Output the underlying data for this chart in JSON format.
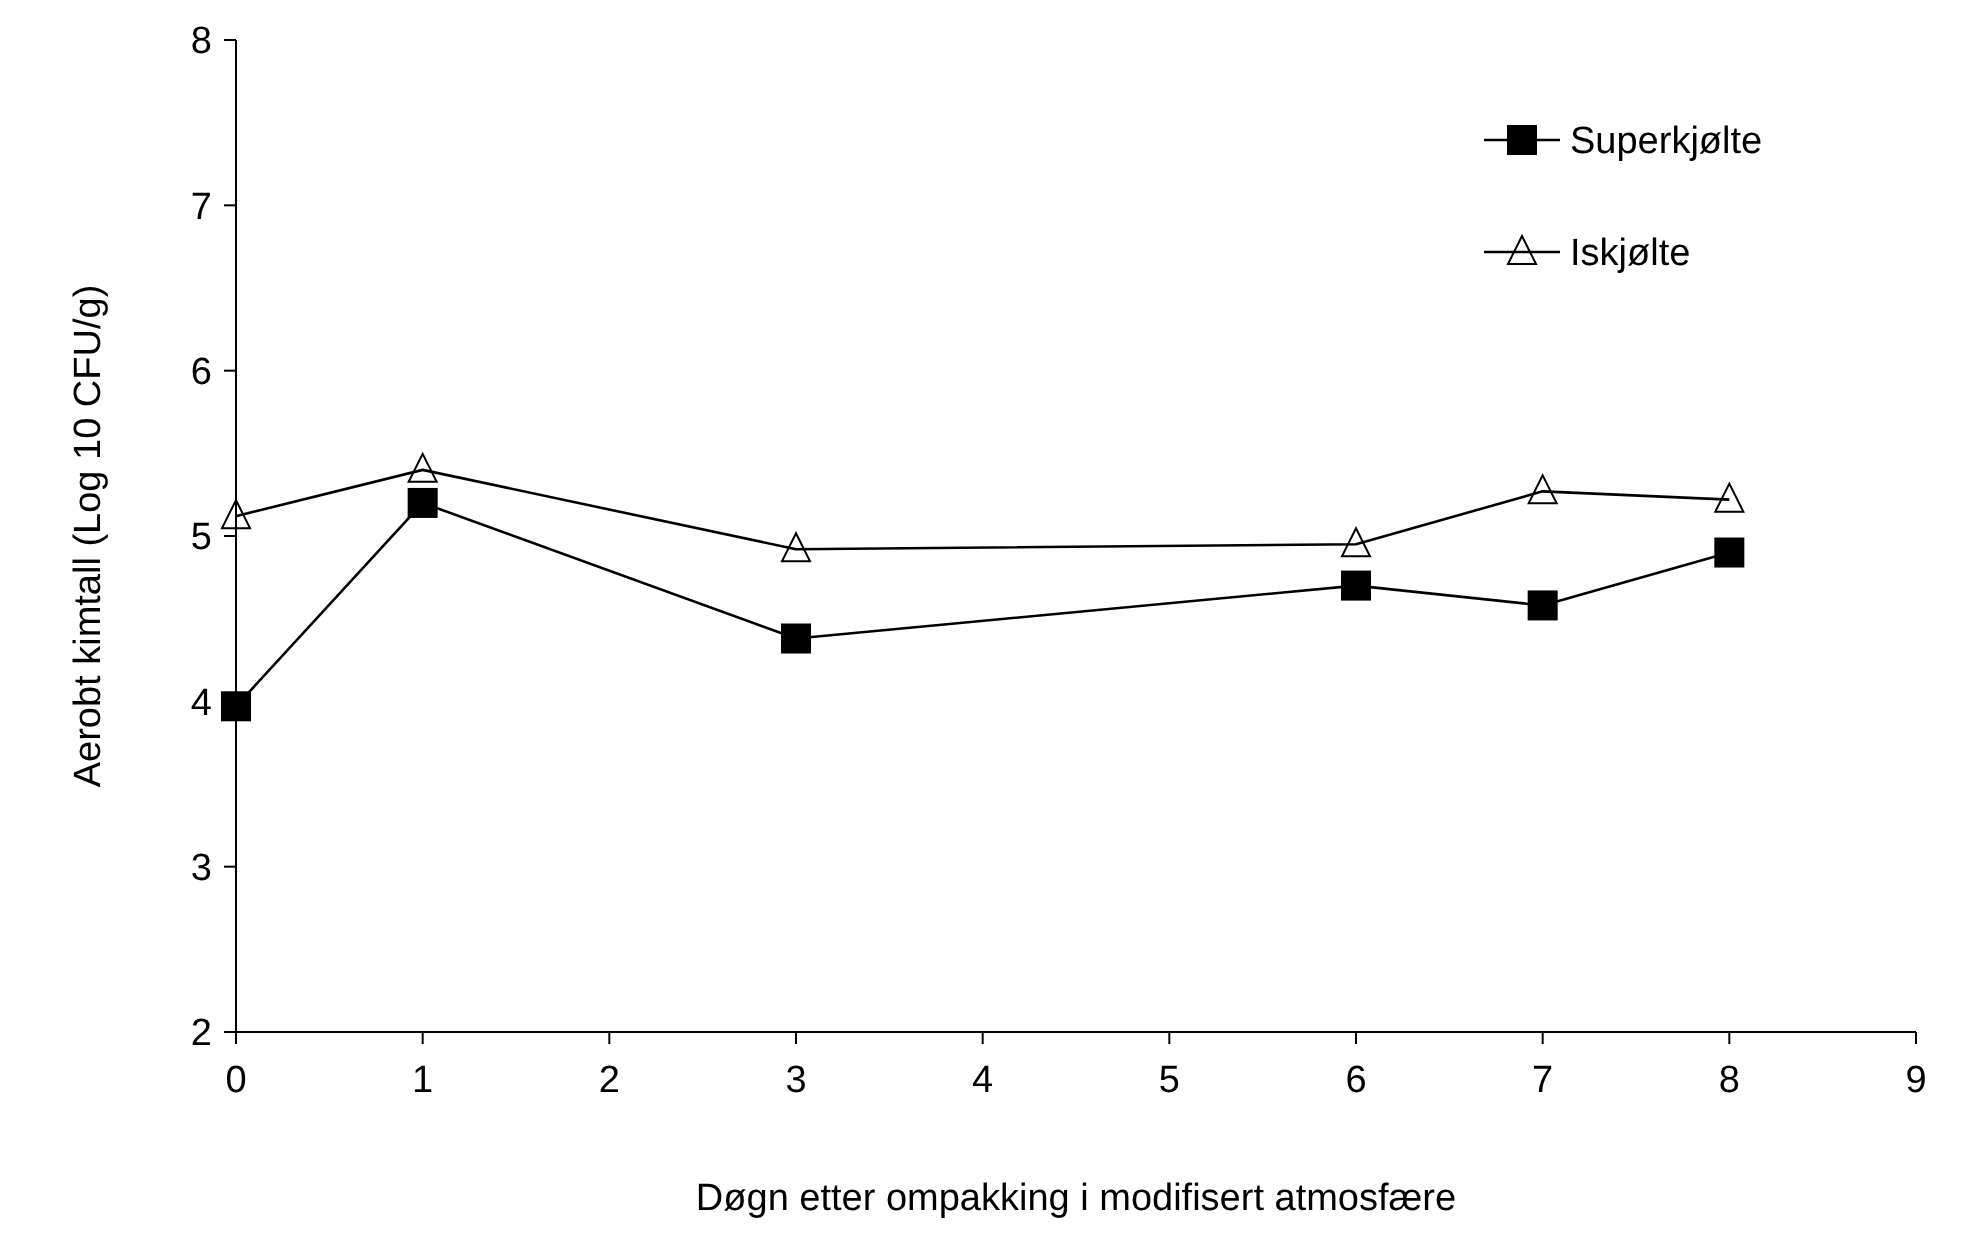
{
  "chart_data": {
    "type": "line",
    "xlabel": "Døgn etter ompakking i modifisert atmosfære",
    "ylabel": "Aerobt kimtall (Log 10 CFU/g)",
    "x": [
      0,
      1,
      3,
      6,
      7,
      8
    ],
    "series": [
      {
        "name": "Superkjølte",
        "color": "#000000",
        "marker": "square",
        "values": [
          3.97,
          5.2,
          4.38,
          4.7,
          4.58,
          4.9
        ]
      },
      {
        "name": "Iskjølte",
        "color": "#000000",
        "marker": "triangle",
        "values": [
          5.12,
          5.4,
          4.92,
          4.95,
          5.27,
          5.22
        ]
      }
    ],
    "xlim": [
      0,
      9
    ],
    "xticks": [
      0,
      1,
      2,
      3,
      4,
      5,
      6,
      7,
      8,
      9
    ],
    "ylim": [
      2,
      8
    ],
    "yticks": [
      2,
      3,
      4,
      5,
      6,
      7,
      8
    ],
    "grid": false,
    "legend": "top right",
    "line_style": "solid"
  }
}
